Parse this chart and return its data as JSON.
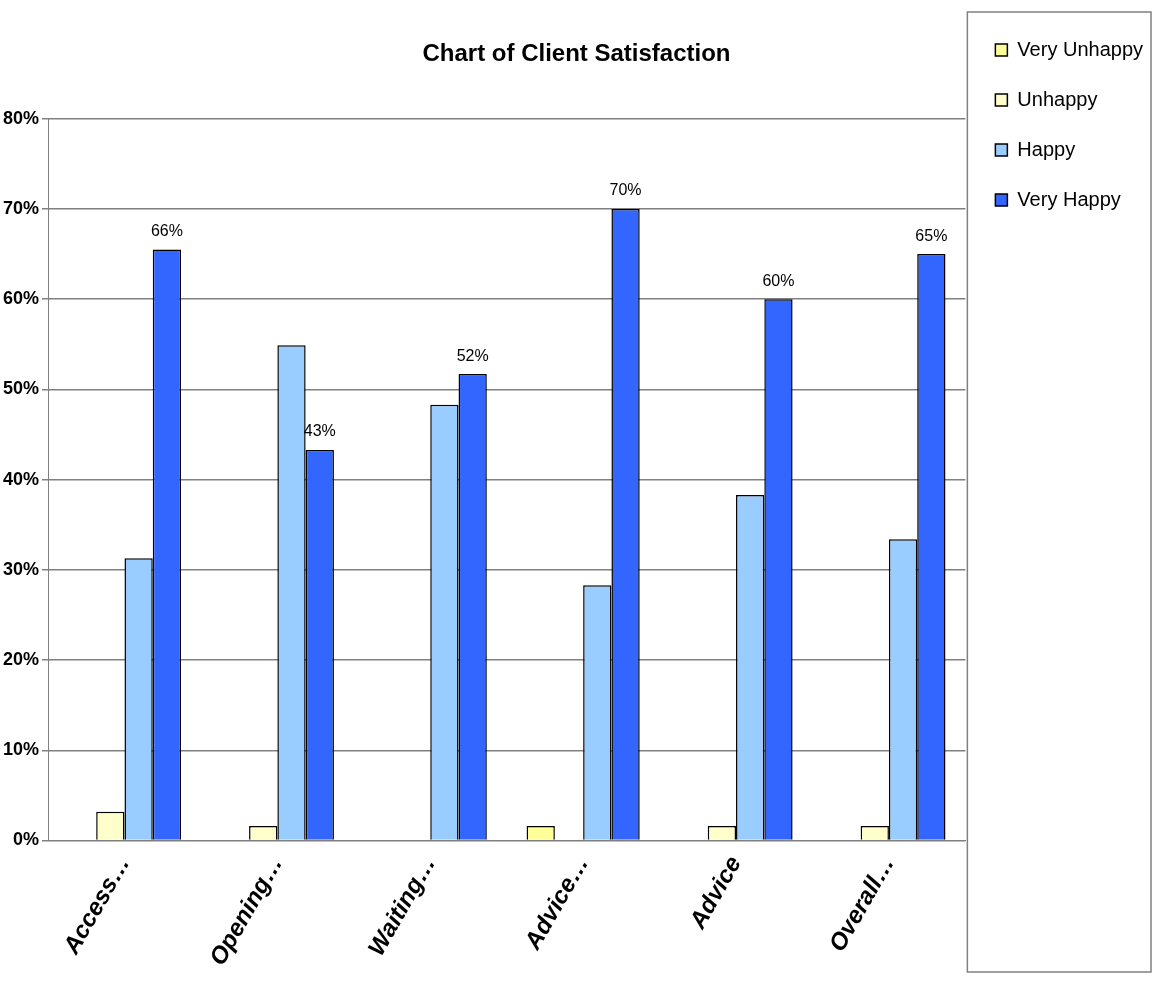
{
  "chart_data": {
    "type": "bar",
    "title": "Chart of Client Satisfaction",
    "categories": [
      "Access…",
      "Opening…",
      "Waiting…",
      "Advice…",
      "Advice",
      "Overall…"
    ],
    "series": [
      {
        "name": "Very Unhappy",
        "color": "#ffff99",
        "values": [
          null,
          null,
          null,
          1.6,
          null,
          null
        ]
      },
      {
        "name": "Unhappy",
        "color": "#ffffcc",
        "values": [
          3.2,
          1.6,
          null,
          null,
          1.6,
          1.6
        ]
      },
      {
        "name": "Happy",
        "color": "#99ccff",
        "values": [
          31.3,
          54.9,
          48.3,
          28.3,
          38.3,
          33.4
        ]
      },
      {
        "name": "Very Happy",
        "color": "#3366ff",
        "values": [
          65.5,
          43.3,
          51.7,
          70,
          60,
          65
        ],
        "value_labels": [
          "66%",
          "43%",
          "52%",
          "70%",
          "60%",
          "65%"
        ]
      }
    ],
    "ylim": [
      0,
      80
    ],
    "yticks": [
      {
        "value": 0,
        "label": "0%"
      },
      {
        "value": 10,
        "label": "10%"
      },
      {
        "value": 20,
        "label": "20%"
      },
      {
        "value": 30,
        "label": "30%"
      },
      {
        "value": 40,
        "label": "40%"
      },
      {
        "value": 50,
        "label": "50%"
      },
      {
        "value": 60,
        "label": "60%"
      },
      {
        "value": 70,
        "label": "70%"
      },
      {
        "value": 80,
        "label": "80%"
      }
    ],
    "grid": "y",
    "legend": "top right"
  }
}
